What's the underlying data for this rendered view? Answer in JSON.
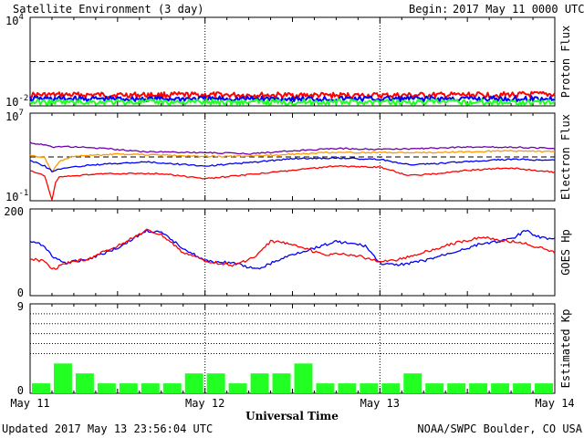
{
  "header": {
    "title": "Satellite Environment (3 day)",
    "begin_label": "Begin:",
    "begin_value": "2017 May 11 0000 UTC"
  },
  "footer": {
    "updated": "Updated 2017 May 13 23:56:04 UTC",
    "credit": "NOAA/SWPC Boulder, CO USA"
  },
  "colors": {
    "red": "#ff0000",
    "blue": "#0000ff",
    "green": "#22ff22",
    "purple": "#7000b0",
    "orange": "#ff9900",
    "kp_bar": "#22ff22"
  },
  "chart_data": [
    {
      "type": "line",
      "id": "proton",
      "ylabel": "Proton Flux",
      "y_scale": "log",
      "ylim": [
        0.01,
        10000
      ],
      "ytick_labels": [
        {
          "value": 10000,
          "base": "10",
          "exp": "4"
        },
        {
          "value": 0.01,
          "base": "10",
          "exp": "-2"
        }
      ],
      "threshold": 10,
      "xlim": [
        0,
        72
      ],
      "series": [
        {
          "color": "red",
          "x": [
            0,
            24,
            48,
            72
          ],
          "y": [
            0.055,
            0.055,
            0.05,
            0.06
          ]
        },
        {
          "color": "blue",
          "x": [
            0,
            24,
            48,
            72
          ],
          "y": [
            0.03,
            0.03,
            0.03,
            0.03
          ]
        },
        {
          "color": "green",
          "x": [
            0,
            24,
            48,
            72
          ],
          "y": [
            0.018,
            0.018,
            0.018,
            0.018
          ]
        }
      ]
    },
    {
      "type": "line",
      "id": "electron",
      "ylabel": "Electron Flux",
      "y_scale": "log",
      "ylim": [
        0.1,
        10000000
      ],
      "ytick_labels": [
        {
          "value": 10000000,
          "base": "10",
          "exp": "7"
        },
        {
          "value": 0.1,
          "base": "10",
          "exp": "-1"
        }
      ],
      "threshold": 1000,
      "xlim": [
        0,
        72
      ],
      "series": [
        {
          "color": "purple",
          "x": [
            0,
            2,
            3,
            5,
            10,
            16,
            24,
            30,
            36,
            42,
            48,
            54,
            60,
            66,
            72
          ],
          "y": [
            20000,
            12000,
            8000,
            9000,
            6000,
            3000,
            2500,
            2000,
            3500,
            6000,
            5000,
            6000,
            8000,
            8000,
            6000
          ]
        },
        {
          "color": "orange",
          "x": [
            0,
            2,
            3,
            4,
            6,
            12,
            18,
            24,
            30,
            36,
            42,
            48,
            54,
            60,
            66,
            72
          ],
          "y": [
            1500,
            800,
            40,
            400,
            1200,
            1800,
            1500,
            1100,
            1200,
            1800,
            2600,
            2500,
            2500,
            3000,
            3500,
            3000
          ]
        },
        {
          "color": "blue",
          "x": [
            0,
            2,
            3,
            4,
            8,
            16,
            24,
            30,
            36,
            42,
            48,
            52,
            56,
            60,
            66,
            72
          ],
          "y": [
            500,
            150,
            50,
            80,
            180,
            350,
            150,
            300,
            700,
            800,
            600,
            200,
            250,
            400,
            600,
            500
          ]
        },
        {
          "color": "red",
          "x": [
            0,
            2,
            3,
            3.5,
            4,
            10,
            18,
            24,
            30,
            36,
            42,
            48,
            52,
            56,
            60,
            66,
            72
          ],
          "y": [
            60,
            20,
            0.1,
            5,
            15,
            30,
            30,
            10,
            25,
            60,
            150,
            120,
            20,
            30,
            60,
            100,
            40
          ]
        }
      ]
    },
    {
      "type": "line",
      "id": "goes-hp",
      "ylabel": "GOES Hp",
      "ylim": [
        0,
        200
      ],
      "yticks": [
        0,
        200
      ],
      "xlim": [
        0,
        72
      ],
      "series": [
        {
          "color": "blue",
          "x": [
            0,
            2,
            3,
            5,
            8,
            12,
            16,
            18,
            21,
            24,
            28,
            31,
            36,
            42,
            46,
            48,
            50,
            54,
            58,
            62,
            66,
            68,
            70,
            72
          ],
          "y": [
            125,
            115,
            90,
            75,
            85,
            110,
            150,
            145,
            110,
            80,
            75,
            60,
            95,
            125,
            115,
            75,
            70,
            80,
            100,
            120,
            130,
            150,
            135,
            130
          ]
        },
        {
          "color": "red",
          "x": [
            0,
            2,
            3,
            5,
            8,
            12,
            16,
            18,
            21,
            24,
            28,
            31,
            33,
            36,
            40,
            44,
            48,
            50,
            54,
            58,
            62,
            66,
            68,
            70,
            72
          ],
          "y": [
            85,
            80,
            60,
            75,
            85,
            115,
            150,
            140,
            100,
            80,
            70,
            90,
            125,
            120,
            95,
            95,
            80,
            80,
            100,
            120,
            135,
            125,
            120,
            110,
            100
          ]
        }
      ]
    },
    {
      "type": "bar",
      "id": "kp",
      "ylabel": "Estimated Kp",
      "ylim": [
        0,
        9
      ],
      "yticks": [
        0,
        9
      ],
      "dotted_levels": [
        4,
        5,
        6,
        7,
        8
      ],
      "xlim": [
        0,
        72
      ],
      "bin_hours": 3,
      "values": [
        1,
        3,
        2,
        1,
        1,
        1,
        1,
        2,
        2,
        1,
        2,
        2,
        3,
        1,
        1,
        1,
        1,
        2,
        1,
        1,
        1,
        1,
        1,
        1
      ]
    }
  ],
  "x_axis": {
    "label": "Universal Time",
    "ticks": [
      {
        "hour": 0,
        "label": "May 11"
      },
      {
        "hour": 24,
        "label": "May 12"
      },
      {
        "hour": 48,
        "label": "May 13"
      },
      {
        "hour": 72,
        "label": "May 14"
      }
    ]
  }
}
